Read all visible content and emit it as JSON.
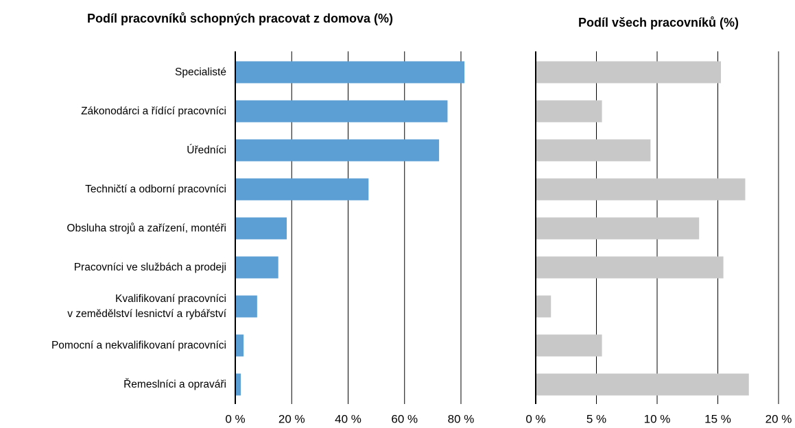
{
  "chart_data": [
    {
      "type": "bar",
      "orientation": "horizontal",
      "title": "Podíl pracovníků schopných pracovat z domova (%)",
      "categories": [
        "Specialisté",
        "Zákonodárci a řídící pracovníci",
        "Úředníci",
        "Techničtí a odborní pracovníci",
        "Obsluha strojů a zařízení, montéři",
        "Pracovníci ve službách a prodeji",
        "Kvalifikovaní pracovníci\nv zemědělství lesnictví a rybářství",
        "Pomocní a nekvalifikovaní pracovníci",
        "Řemeslníci a opraváři"
      ],
      "values": [
        81,
        75,
        72,
        47,
        18,
        15,
        7.5,
        2.7,
        1.7
      ],
      "color": "#5b9fd4",
      "xlim": [
        0,
        80
      ],
      "xticks": [
        {
          "value": 0,
          "label": "0 %"
        },
        {
          "value": 20,
          "label": "20 %"
        },
        {
          "value": 40,
          "label": "40 %"
        },
        {
          "value": 60,
          "label": "60 %"
        },
        {
          "value": 80,
          "label": "80 %"
        }
      ],
      "grid": true
    },
    {
      "type": "bar",
      "orientation": "horizontal",
      "title": "Podíl všech pracovníků (%)",
      "values": [
        15.2,
        5.4,
        9.4,
        17.2,
        13.4,
        15.4,
        1.2,
        5.4,
        17.5
      ],
      "color": "#c8c8c8",
      "xlim": [
        0,
        20
      ],
      "xticks": [
        {
          "value": 0,
          "label": "0 %"
        },
        {
          "value": 5,
          "label": "5 %"
        },
        {
          "value": 10,
          "label": "10 %"
        },
        {
          "value": 15,
          "label": "15 %"
        },
        {
          "value": 20,
          "label": "20 %"
        }
      ],
      "grid": true
    }
  ]
}
